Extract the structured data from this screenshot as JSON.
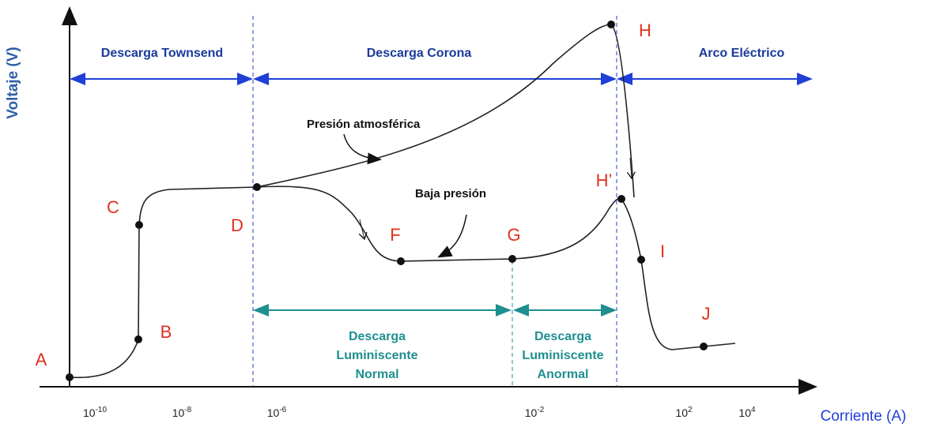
{
  "axes": {
    "y_label": "Voltaje (V)",
    "x_label": "Corriente (A)",
    "x_ticks": [
      {
        "base": "10",
        "exp": "-10"
      },
      {
        "base": "10",
        "exp": "-8"
      },
      {
        "base": "10",
        "exp": "-6"
      },
      {
        "base": "10",
        "exp": "-2"
      },
      {
        "base": "10",
        "exp": "2"
      },
      {
        "base": "10",
        "exp": "4"
      }
    ]
  },
  "regions": [
    "Descarga Townsend",
    "Descarga Corona",
    "Arco Eléctrico"
  ],
  "glow_regions": [
    {
      "lines": [
        "Descarga",
        "Luminiscente",
        "Normal"
      ]
    },
    {
      "lines": [
        "Descarga",
        "Luminiscente",
        "Anormal"
      ]
    }
  ],
  "curves": [
    "Presión atmosférica",
    "Baja presión"
  ],
  "points": [
    "A",
    "B",
    "C",
    "D",
    "F",
    "G",
    "H",
    "H’",
    "I",
    "J"
  ]
}
